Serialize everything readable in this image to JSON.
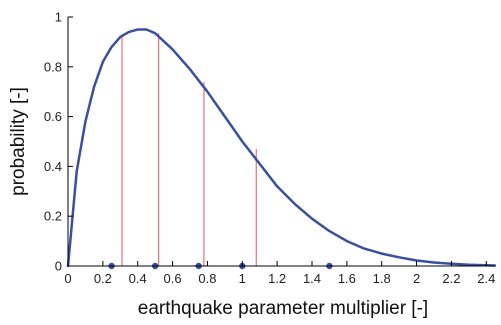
{
  "chart_data": {
    "type": "line",
    "title": "",
    "xlabel": "earthquake parameter multiplier [-]",
    "ylabel": "probability [-]",
    "xlim": [
      0,
      2.45
    ],
    "ylim": [
      0,
      1
    ],
    "x_ticks": [
      "0",
      "0.2",
      "0.4",
      "0.6",
      "0.8",
      "1",
      "1.2",
      "1.4",
      "1.6",
      "1.8",
      "2",
      "2.2",
      "2.4"
    ],
    "y_ticks": [
      "0",
      "0.2",
      "0.4",
      "0.6",
      "0.8",
      "1"
    ],
    "grid": false,
    "legend": "none",
    "series": [
      {
        "color": "#3a4fa0",
        "x": [
          0,
          0.05,
          0.1,
          0.15,
          0.2,
          0.25,
          0.3,
          0.35,
          0.4,
          0.45,
          0.5,
          0.6,
          0.7,
          0.8,
          0.9,
          1.0,
          1.1,
          1.2,
          1.3,
          1.4,
          1.5,
          1.6,
          1.7,
          1.8,
          1.9,
          2.0,
          2.1,
          2.2,
          2.3,
          2.45
        ],
        "y": [
          0,
          0.38,
          0.58,
          0.72,
          0.82,
          0.88,
          0.92,
          0.94,
          0.95,
          0.95,
          0.935,
          0.87,
          0.79,
          0.7,
          0.6,
          0.5,
          0.41,
          0.32,
          0.25,
          0.19,
          0.14,
          0.1,
          0.07,
          0.05,
          0.035,
          0.022,
          0.014,
          0.009,
          0.005,
          0.002
        ]
      }
    ],
    "vertical_lines": {
      "color": "#e05560",
      "x": [
        0.31,
        0.52,
        0.78,
        1.08
      ],
      "y": [
        0.92,
        0.935,
        0.74,
        0.47
      ]
    },
    "points": {
      "color": "#3a4fa0",
      "x": [
        0.25,
        0.5,
        0.75,
        1.0,
        1.5
      ],
      "y": [
        0,
        0,
        0,
        0,
        0
      ]
    }
  }
}
